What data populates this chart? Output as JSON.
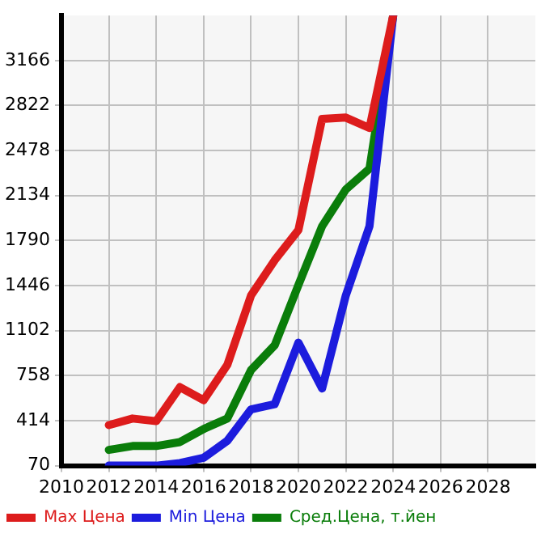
{
  "chart_data": {
    "type": "line",
    "x": [
      2012,
      2013,
      2014,
      2015,
      2016,
      2017,
      2018,
      2019,
      2020,
      2021,
      2022,
      2023,
      2024
    ],
    "series": [
      {
        "name": "Max Цена",
        "color": "#dd1c1c",
        "values": [
          380,
          430,
          410,
          670,
          570,
          840,
          1370,
          1640,
          1870,
          2720,
          2730,
          2650,
          3510
        ]
      },
      {
        "name": "Min Цена",
        "color": "#1c1cdd",
        "values": [
          70,
          70,
          70,
          90,
          130,
          260,
          500,
          540,
          1010,
          660,
          1370,
          1900,
          3510
        ]
      },
      {
        "name": "Сред.Цена, т.йен",
        "color": "#0a7d0a",
        "values": [
          190,
          220,
          220,
          250,
          350,
          430,
          800,
          990,
          1450,
          1900,
          2180,
          2340,
          3510
        ]
      }
    ],
    "xlim": [
      2010,
      2030
    ],
    "xticks": [
      2010,
      2012,
      2014,
      2016,
      2018,
      2020,
      2022,
      2024,
      2026,
      2028
    ],
    "ylim": [
      70,
      3510
    ],
    "yticks": [
      70,
      414,
      758,
      1102,
      1446,
      1790,
      2134,
      2478,
      2822,
      3166
    ],
    "grid": true,
    "legend": "bottom",
    "marker": "none",
    "line_style": "solid"
  }
}
